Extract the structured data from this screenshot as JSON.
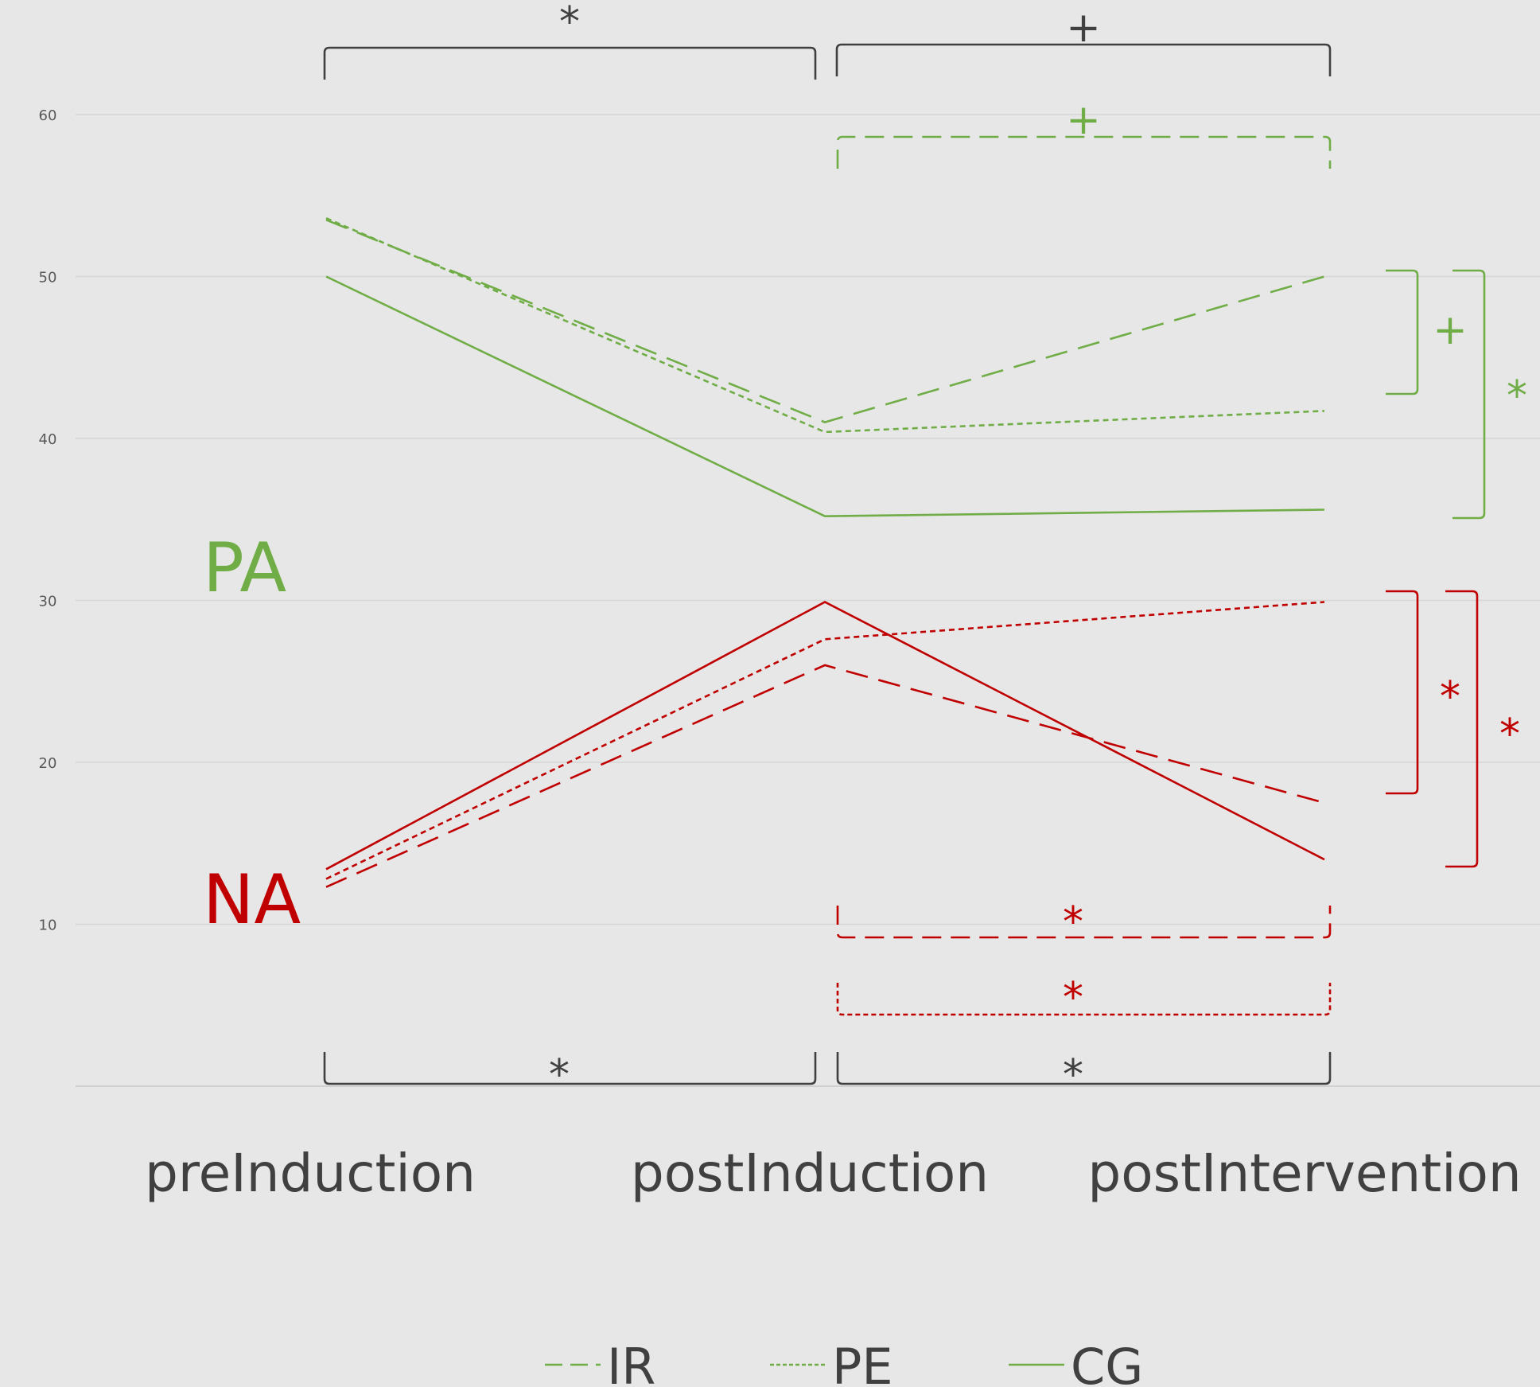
{
  "chart_data": {
    "type": "line",
    "categories": [
      "preInduction",
      "postInduction",
      "postIntervention"
    ],
    "ylim": [
      0,
      60
    ],
    "yticks": [
      10,
      20,
      30,
      40,
      50,
      60
    ],
    "grid": true,
    "legend_position": "bottom",
    "legend": [
      {
        "label": "IR",
        "dash": "dashed"
      },
      {
        "label": "PE",
        "dash": "dotted"
      },
      {
        "label": "CG",
        "dash": "solid"
      }
    ],
    "panels": [
      {
        "label": "PA",
        "color": "#70ad47"
      },
      {
        "label": "NA",
        "color": "#c00000"
      }
    ],
    "series": [
      {
        "panel": "PA",
        "group": "IR",
        "dash": "dashed",
        "color": "#70ad47",
        "values": [
          53.5,
          41.0,
          50.0
        ]
      },
      {
        "panel": "PA",
        "group": "PE",
        "dash": "dotted",
        "color": "#70ad47",
        "values": [
          53.6,
          40.4,
          41.7
        ]
      },
      {
        "panel": "PA",
        "group": "CG",
        "dash": "solid",
        "color": "#70ad47",
        "values": [
          50.0,
          35.2,
          35.6
        ]
      },
      {
        "panel": "NA",
        "group": "IR",
        "dash": "dashed",
        "color": "#c00000",
        "values": [
          12.3,
          26.0,
          17.5
        ]
      },
      {
        "panel": "NA",
        "group": "PE",
        "dash": "dotted",
        "color": "#c00000",
        "values": [
          12.8,
          27.6,
          29.9
        ]
      },
      {
        "panel": "NA",
        "group": "CG",
        "dash": "solid",
        "color": "#c00000",
        "values": [
          13.4,
          29.9,
          14.0
        ]
      }
    ],
    "annotations": [
      {
        "symbol": "*",
        "color": "#404040",
        "between": [
          "preInduction",
          "postInduction"
        ],
        "position": "top"
      },
      {
        "symbol": "+",
        "color": "#404040",
        "between": [
          "postInduction",
          "postIntervention"
        ],
        "position": "top"
      },
      {
        "symbol": "+",
        "color": "#70ad47",
        "between": [
          "postInduction",
          "postIntervention"
        ],
        "series": "PA IR"
      },
      {
        "symbol": "+",
        "color": "#70ad47",
        "between": [
          "PA IR",
          "PA PE"
        ],
        "at": "postIntervention"
      },
      {
        "symbol": "*",
        "color": "#70ad47",
        "between": [
          "PA IR",
          "PA CG"
        ],
        "at": "postIntervention"
      },
      {
        "symbol": "*",
        "color": "#c00000",
        "between": [
          "NA PE",
          "NA IR"
        ],
        "at": "postIntervention"
      },
      {
        "symbol": "*",
        "color": "#c00000",
        "between": [
          "NA PE",
          "NA CG"
        ],
        "at": "postIntervention"
      },
      {
        "symbol": "*",
        "color": "#c00000",
        "between": [
          "postInduction",
          "postIntervention"
        ],
        "series": "NA IR"
      },
      {
        "symbol": "*",
        "color": "#c00000",
        "between": [
          "postInduction",
          "postIntervention"
        ],
        "series": "NA PE"
      },
      {
        "symbol": "*",
        "color": "#404040",
        "between": [
          "preInduction",
          "postInduction"
        ],
        "position": "bottom"
      },
      {
        "symbol": "*",
        "color": "#404040",
        "between": [
          "postInduction",
          "postIntervention"
        ],
        "position": "bottom"
      }
    ]
  }
}
